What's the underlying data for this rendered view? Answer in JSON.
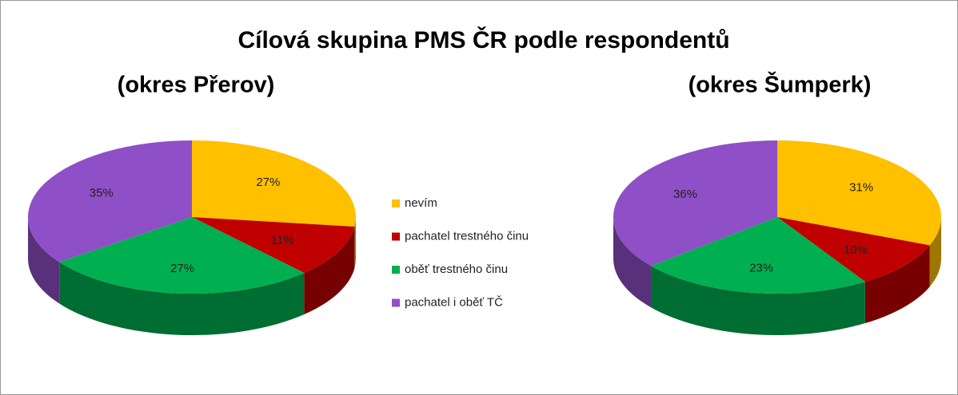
{
  "title": "Cílová skupina PMS ČR podle respondentů",
  "chart_data": [
    {
      "type": "pie",
      "title": "(okres Přerov)",
      "categories": [
        "nevím",
        "pachatel trestného činu",
        "oběť trestného činu",
        "pachatel i oběť TČ"
      ],
      "colors": [
        "#ffc000",
        "#c00000",
        "#00b050",
        "#8f4fc6"
      ],
      "values": [
        27,
        11,
        27,
        35
      ],
      "value_labels": [
        "27%",
        "11%",
        "27%",
        "35%"
      ]
    },
    {
      "type": "pie",
      "title": "(okres Šumperk)",
      "values": [
        31,
        10,
        23,
        36
      ],
      "value_labels": [
        "31%",
        "10%",
        "23%",
        "36%"
      ]
    }
  ]
}
